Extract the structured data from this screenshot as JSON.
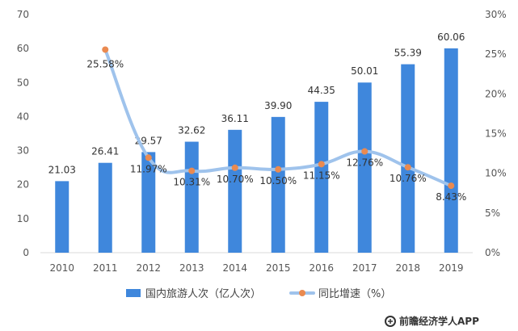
{
  "chart_data": {
    "type": "bar",
    "categories": [
      "2010",
      "2011",
      "2012",
      "2013",
      "2014",
      "2015",
      "2016",
      "2017",
      "2018",
      "2019"
    ],
    "series": [
      {
        "name": "国内旅游人次（亿人次）",
        "type": "bar",
        "axis": "left",
        "values": [
          21.03,
          26.41,
          29.57,
          32.62,
          36.11,
          39.9,
          44.35,
          50.01,
          55.39,
          60.06
        ],
        "labels": [
          "21.03",
          "26.41",
          "29.57",
          "32.62",
          "36.11",
          "39.90",
          "44.35",
          "50.01",
          "55.39",
          "60.06"
        ],
        "color": "#3f87dc"
      },
      {
        "name": "同比增速（%）",
        "type": "line",
        "axis": "right",
        "values": [
          null,
          25.58,
          11.97,
          10.31,
          10.7,
          10.5,
          11.15,
          12.76,
          10.76,
          8.43
        ],
        "labels": [
          "",
          "25.58%",
          "11.97%",
          "10.31%",
          "10.70%",
          "10.50%",
          "11.15%",
          "12.76%",
          "10.76%",
          "8.43%"
        ],
        "line_color": "#9fc3ec",
        "marker_color": "#ea8a50"
      }
    ],
    "y_left": {
      "min": 0,
      "max": 70,
      "ticks": [
        "0",
        "10",
        "20",
        "30",
        "40",
        "50",
        "60",
        "70"
      ]
    },
    "y_right": {
      "min": 0,
      "max": 30,
      "ticks": [
        "0%",
        "5%",
        "10%",
        "15%",
        "20%",
        "25%",
        "30%"
      ]
    },
    "grid": false,
    "legend_position": "bottom-center"
  },
  "watermark": {
    "text": "前瞻经济学人APP"
  }
}
